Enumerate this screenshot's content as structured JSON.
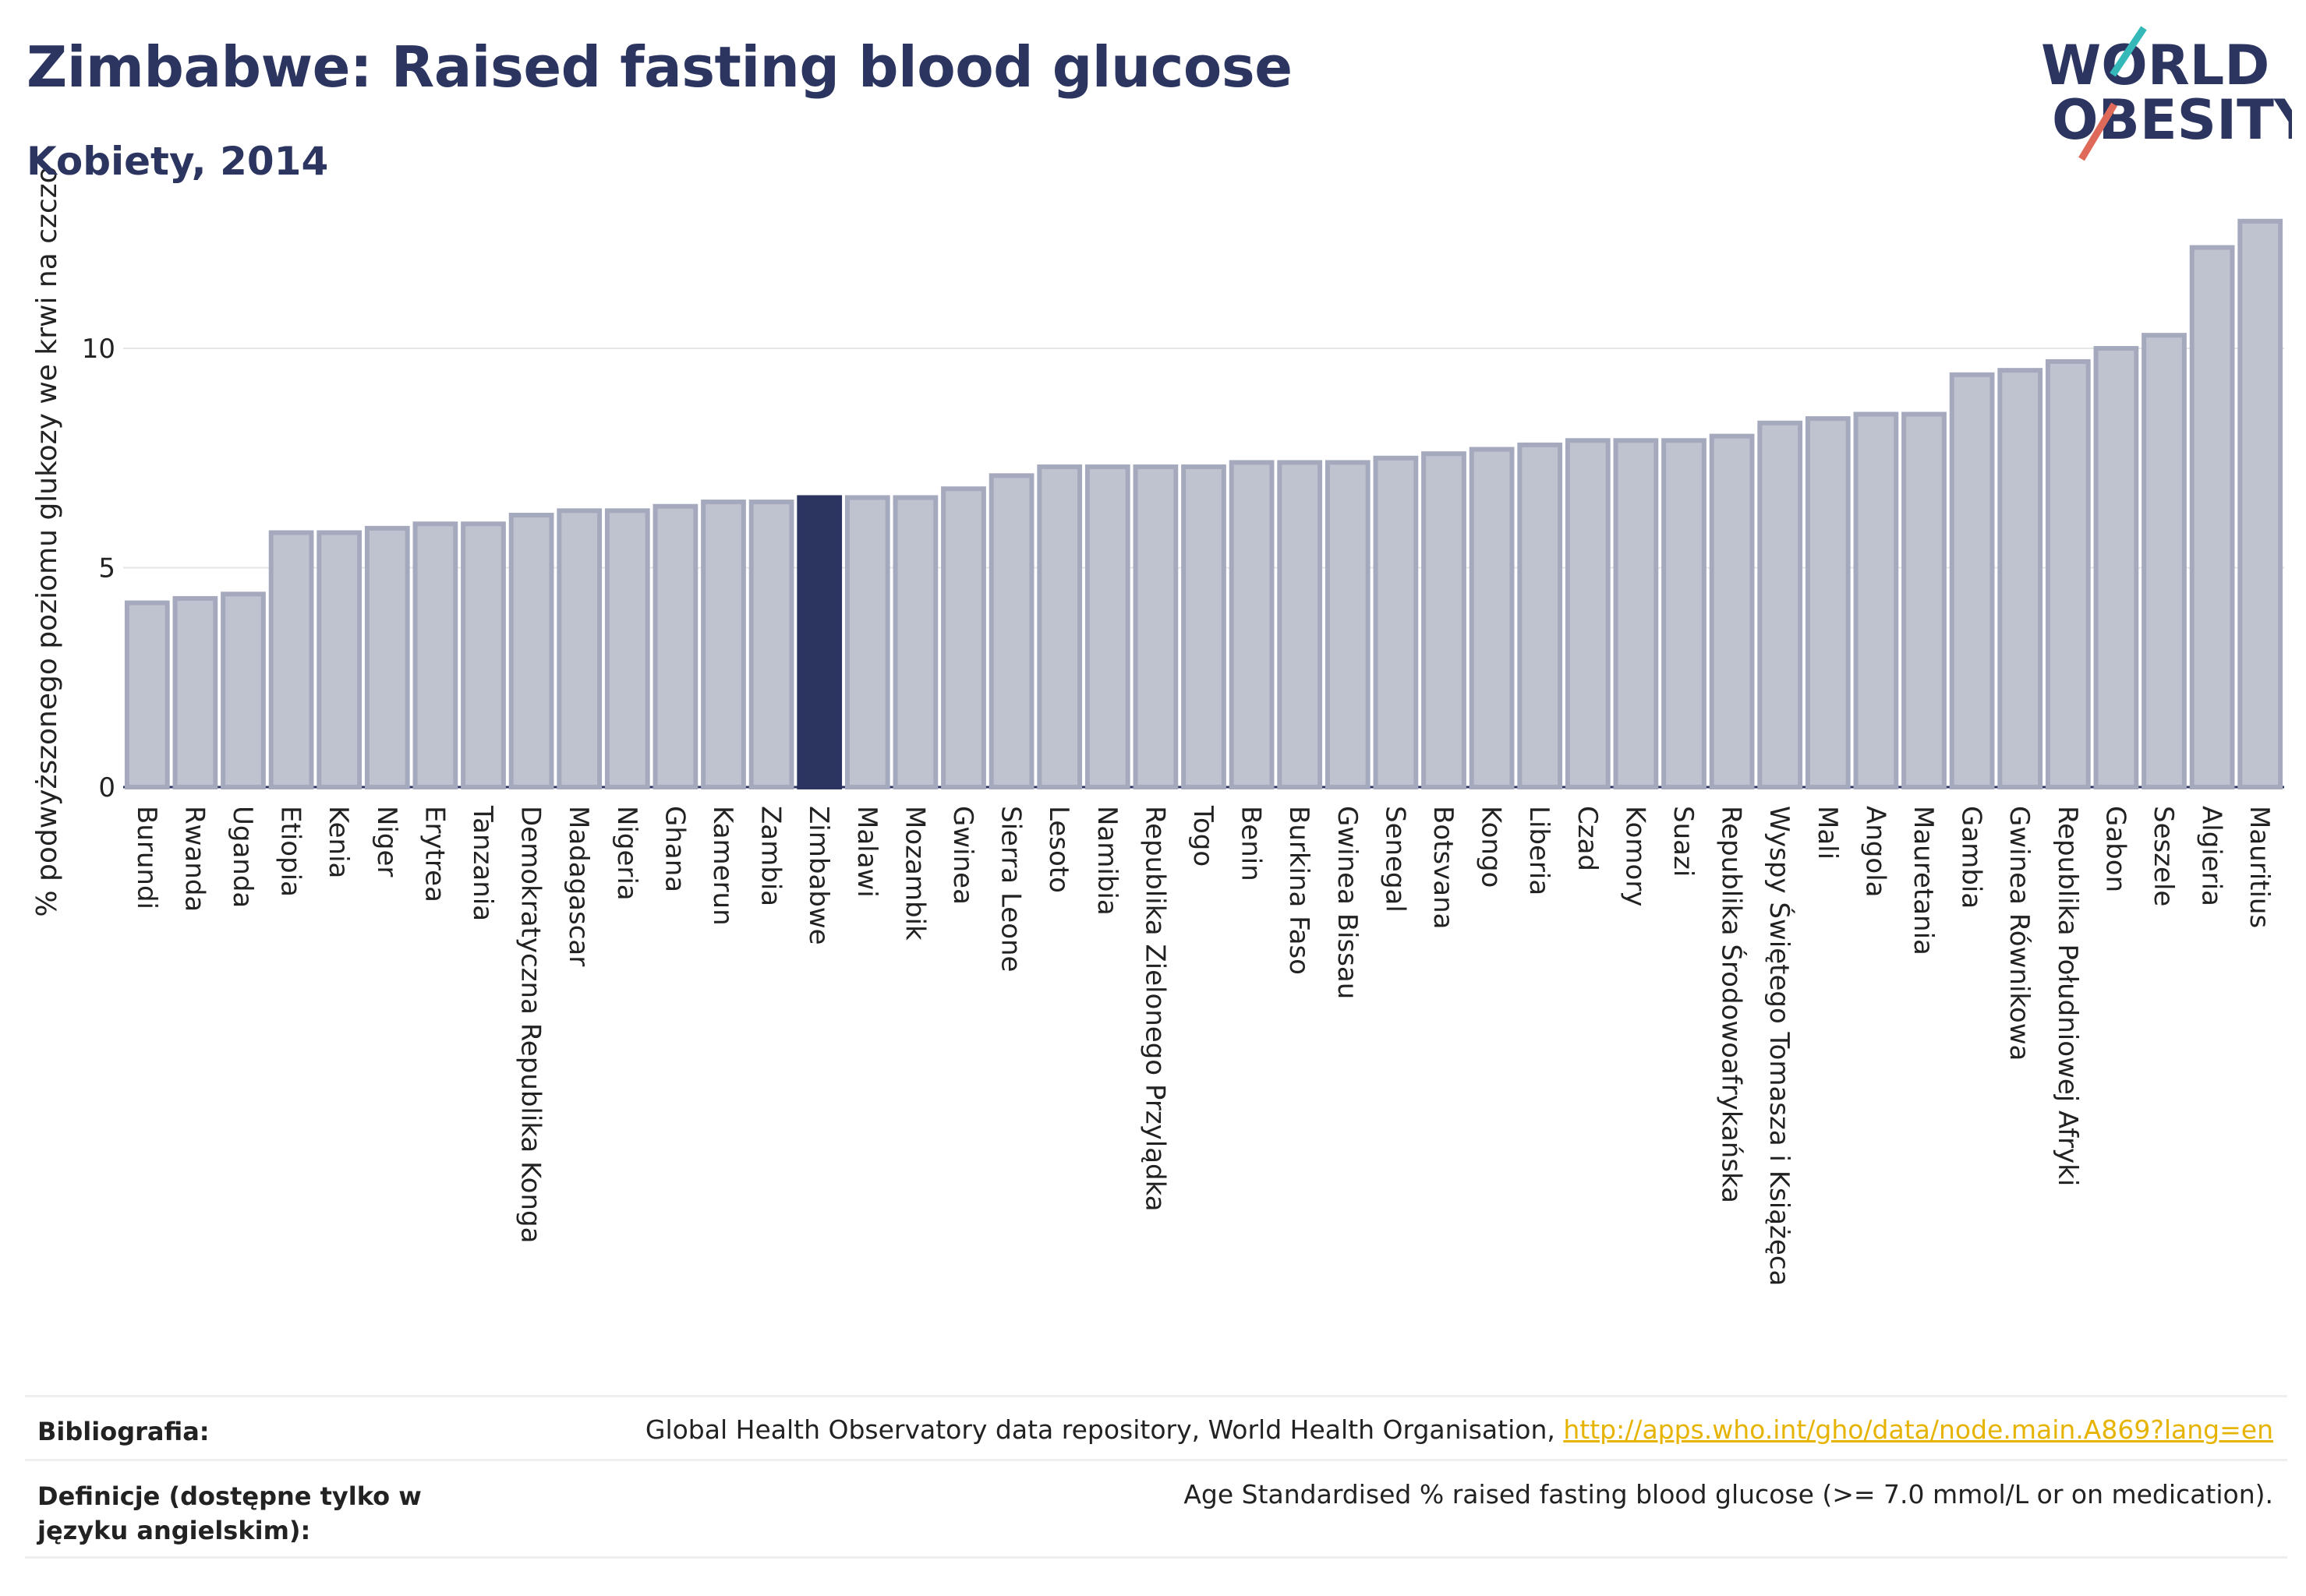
{
  "header": {
    "title": "Zimbabwe: Raised fasting blood glucose",
    "subtitle": "Kobiety, 2014"
  },
  "logo": {
    "line1": "WORLD",
    "line2": "OBESITY"
  },
  "chart_data": {
    "type": "bar",
    "ylabel": "% podwyższonego poziomu glukozy we krwi na czczo",
    "xlabel": "",
    "ylim": [
      0,
      13.5
    ],
    "yticks": [
      0,
      5,
      10
    ],
    "grid": true,
    "highlight": "Zimbabwe",
    "highlight_color": "#2b3560",
    "bar_color": "#bfc2cf",
    "bar_edge_color": "#a5a9bd",
    "categories": [
      "Burundi",
      "Rwanda",
      "Uganda",
      "Etiopia",
      "Kenia",
      "Niger",
      "Erytrea",
      "Tanzania",
      "Demokratyczna Republika Konga",
      "Madagascar",
      "Nigeria",
      "Ghana",
      "Kamerun",
      "Zambia",
      "Zimbabwe",
      "Malawi",
      "Mozambik",
      "Gwinea",
      "Sierra Leone",
      "Lesoto",
      "Namibia",
      "Republika Zielonego Przylądka",
      "Togo",
      "Benin",
      "Burkina Faso",
      "Gwinea Bissau",
      "Senegal",
      "Botsvana",
      "Kongo",
      "Liberia",
      "Czad",
      "Komory",
      "Suazi",
      "Republika Środowoafrykańska",
      "Wyspy Świętego Tomasza i Książęca",
      "Mali",
      "Angola",
      "Mauretania",
      "Gambia",
      "Gwinea Równikowa",
      "Republika Południowej Afryki",
      "Gabon",
      "Seszele",
      "Algieria",
      "Mauritius"
    ],
    "values": [
      4.2,
      4.3,
      4.4,
      5.8,
      5.8,
      5.9,
      6.0,
      6.0,
      6.2,
      6.3,
      6.3,
      6.4,
      6.5,
      6.5,
      6.6,
      6.6,
      6.6,
      6.8,
      7.1,
      7.3,
      7.3,
      7.3,
      7.3,
      7.4,
      7.4,
      7.4,
      7.5,
      7.6,
      7.7,
      7.8,
      7.9,
      7.9,
      7.9,
      8.0,
      8.3,
      8.4,
      8.5,
      8.5,
      9.4,
      9.5,
      9.7,
      10.0,
      10.3,
      12.3,
      12.9
    ]
  },
  "footer": {
    "bibliography_label": "Bibliografia:",
    "bibliography_text": "Global Health Observatory data repository, World Health Organisation, ",
    "bibliography_link": "http://apps.who.int/gho/data/node.main.A869?lang=en",
    "definitions_label": "Definicje (dostępne tylko w języku angielskim):",
    "definitions_text": "Age Standardised % raised fasting blood glucose (>= 7.0 mmol/L or on medication)."
  }
}
